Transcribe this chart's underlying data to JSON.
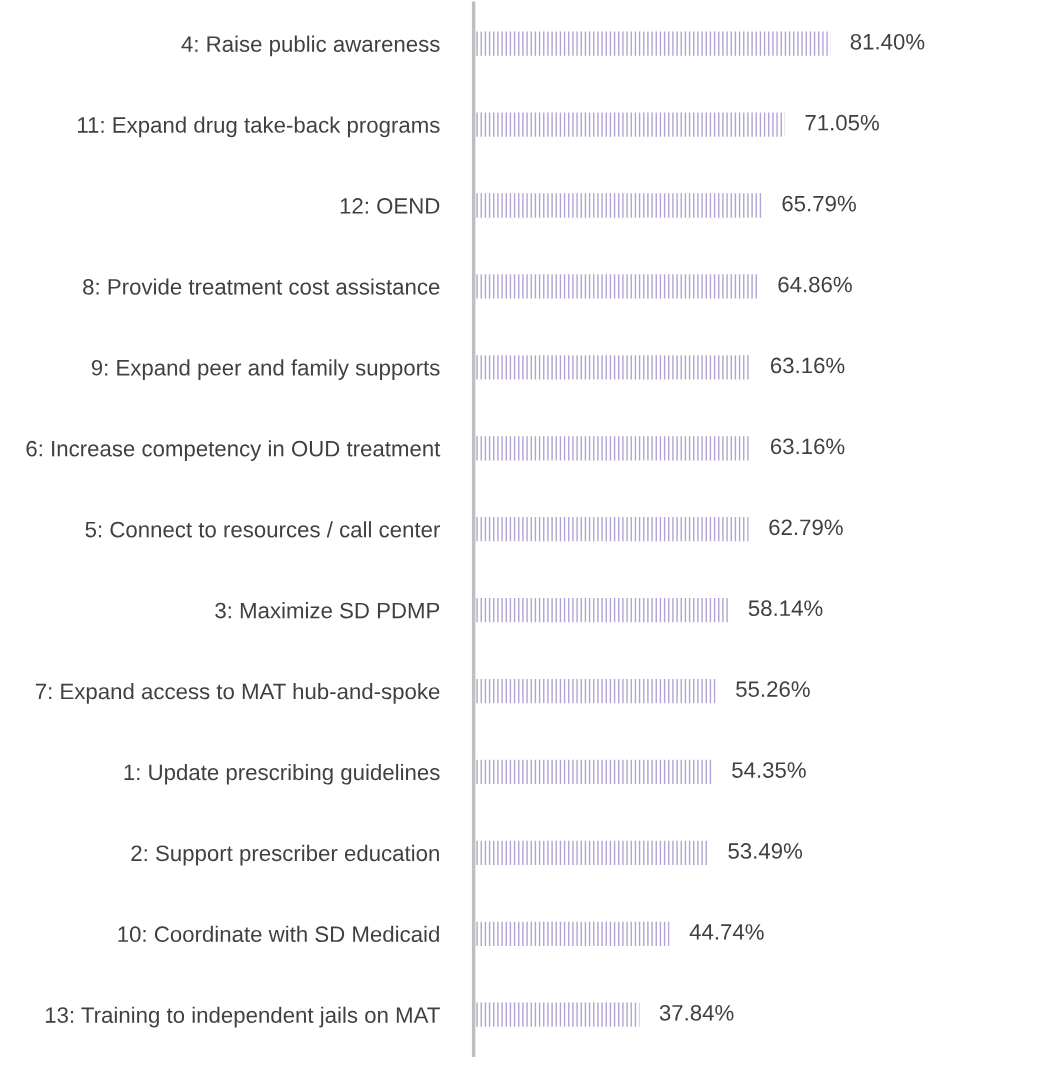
{
  "chart_data": {
    "type": "bar",
    "orientation": "horizontal",
    "relative": false,
    "categories": [
      "4: Raise public awareness",
      "11: Expand drug take-back programs",
      "12: OEND",
      "8: Provide treatment cost assistance",
      "9: Expand peer and family supports",
      "6: Increase competency in OUD treatment",
      "5: Connect to resources / call center",
      "3: Maximize SD PDMP",
      "7: Expand access to MAT hub-and-spoke",
      "1: Update prescribing guidelines",
      "2: Support prescriber education",
      "10: Coordinate with SD Medicaid",
      "13: Training to independent jails on MAT"
    ],
    "values": [
      81.4,
      71.05,
      65.79,
      64.86,
      63.16,
      63.16,
      62.79,
      58.14,
      55.26,
      54.35,
      53.49,
      44.74,
      37.84
    ],
    "value_labels": [
      "81.40%",
      "71.05%",
      "65.79%",
      "64.86%",
      "63.16%",
      "63.16%",
      "62.79%",
      "58.14%",
      "55.26%",
      "54.35%",
      "53.49%",
      "44.74%",
      "37.84%"
    ],
    "color": "#b1a3d3",
    "grid": false,
    "legend": false
  }
}
